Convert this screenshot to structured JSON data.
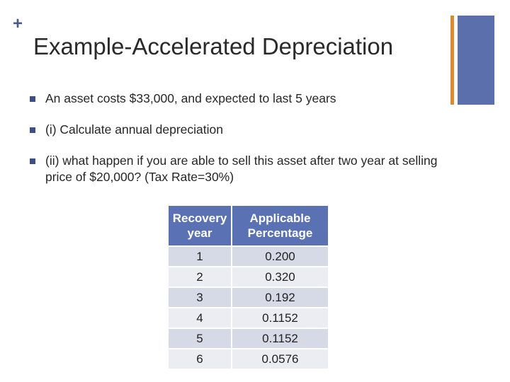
{
  "slide": {
    "plus_symbol": "+",
    "title": "Example-Accelerated Depreciation",
    "bullets": [
      "An asset costs $33,000, and expected to last 5 years",
      "(i) Calculate annual depreciation",
      "(ii) what happen if you are able to sell this asset after two year at selling price of $20,000? (Tax Rate=30%)"
    ]
  },
  "table": {
    "headers": [
      "Recovery year",
      "Applicable Percentage"
    ],
    "rows": [
      [
        "1",
        "0.200"
      ],
      [
        "2",
        "0.320"
      ],
      [
        "3",
        "0.192"
      ],
      [
        "4",
        "0.1152"
      ],
      [
        "5",
        "0.1152"
      ],
      [
        "6",
        "0.0576"
      ]
    ]
  },
  "colors": {
    "accent_orange": "#e08a2e",
    "accent_blue": "#5b6fad",
    "table_header": "#5a72b3",
    "row_dark": "#d6dae6",
    "row_light": "#ecedf3"
  }
}
